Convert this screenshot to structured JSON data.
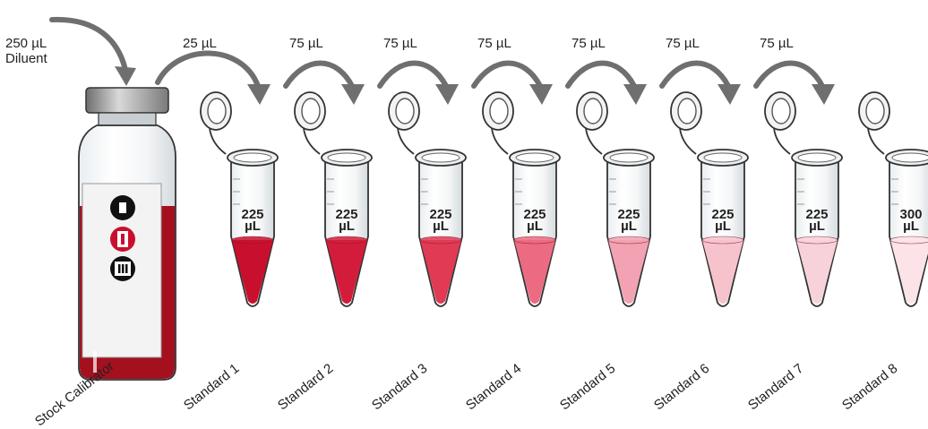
{
  "diluent": {
    "volume": "250 µL",
    "name": "Diluent"
  },
  "stock": {
    "label": "Stock Calibrator",
    "liquid_color": "#a5101f"
  },
  "transfers": [
    "25 µL",
    "75 µL",
    "75 µL",
    "75 µL",
    "75 µL",
    "75 µL",
    "75 µL"
  ],
  "tubes": [
    {
      "label": "Standard 1",
      "volume": "225",
      "unit": "µL",
      "color": "#c8102e"
    },
    {
      "label": "Standard 2",
      "volume": "225",
      "unit": "µL",
      "color": "#d31c3c"
    },
    {
      "label": "Standard 3",
      "volume": "225",
      "unit": "µL",
      "color": "#e03a55"
    },
    {
      "label": "Standard 4",
      "volume": "225",
      "unit": "µL",
      "color": "#ec6b82"
    },
    {
      "label": "Standard 5",
      "volume": "225",
      "unit": "µL",
      "color": "#f2a2b2"
    },
    {
      "label": "Standard 6",
      "volume": "225",
      "unit": "µL",
      "color": "#f6c3cd"
    },
    {
      "label": "Standard 7",
      "volume": "225",
      "unit": "µL",
      "color": "#f8d2da"
    },
    {
      "label": "Standard 8",
      "volume": "300",
      "unit": "µL",
      "color": "#fbe3e8"
    }
  ]
}
